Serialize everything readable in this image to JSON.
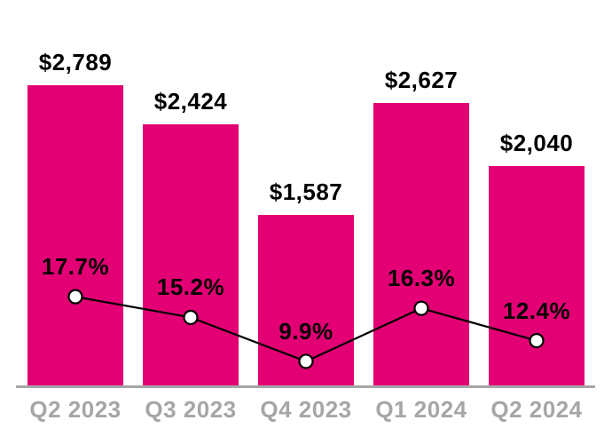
{
  "chart_data": {
    "type": "bar",
    "subtype": "bar-with-line-overlay",
    "title": "",
    "xlabel": "",
    "ylabel": "",
    "grid": false,
    "legend": false,
    "categories": [
      "Q2 2023",
      "Q3 2023",
      "Q4 2023",
      "Q1 2024",
      "Q2 2024"
    ],
    "series": [
      {
        "name": "dollar-values",
        "type": "bar",
        "values": [
          2789,
          2424,
          1587,
          2627,
          2040
        ],
        "data_labels": [
          "$2,789",
          "$2,424",
          "$1,587",
          "$2,627",
          "$2,040"
        ],
        "color": "#e20074"
      },
      {
        "name": "percentage-trend",
        "type": "line",
        "values": [
          17.7,
          15.2,
          9.9,
          16.3,
          12.4
        ],
        "data_labels": [
          "17.7%",
          "15.2%",
          "9.9%",
          "16.3%",
          "12.4%"
        ],
        "color": "#000000",
        "marker_fill": "#ffffff",
        "marker_stroke": "#000000"
      }
    ],
    "bar_ylim": [
      0,
      3581
    ],
    "line_ylim": [
      7,
      53.5
    ],
    "colors": {
      "bar": "#e20074",
      "line": "#000000",
      "marker_fill": "#ffffff",
      "axis_line": "#a6a6a6",
      "tick_label": "#a6a6a6",
      "data_label": "#000000",
      "background": "#ffffff"
    }
  }
}
